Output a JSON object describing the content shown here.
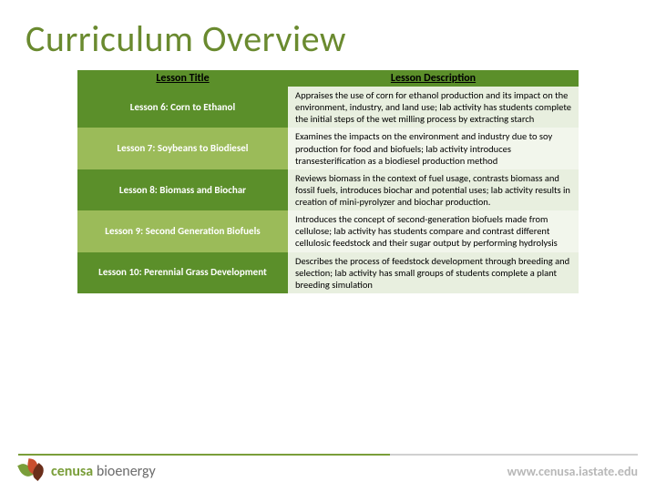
{
  "page": {
    "title": "Curriculum Overview",
    "title_color": "#6a8a2f"
  },
  "table": {
    "header_bg": "#5b8f2a",
    "columns": [
      "Lesson Title",
      "Lesson Description"
    ],
    "row_colors": {
      "dark_title_bg": "#5b8f2a",
      "dark_desc_bg": "#e8efdf",
      "light_title_bg": "#9bbb59",
      "light_desc_bg": "#f2f6ec"
    },
    "rows": [
      {
        "title": "Lesson 6:  Corn to Ethanol",
        "desc": "Appraises the use of corn for ethanol production and its impact on the environment, industry, and land use; lab activity has students complete the initial steps of the wet milling process by extracting starch"
      },
      {
        "title": "Lesson 7:  Soybeans to Biodiesel",
        "desc": "Examines the impacts on the environment and industry due to soy production for food and biofuels; lab activity introduces transesterification as a biodiesel production method"
      },
      {
        "title": "Lesson 8:  Biomass and Biochar",
        "desc": "Reviews biomass in the context of fuel usage, contrasts biomass and fossil fuels, introduces biochar and potential uses; lab activity results in creation of mini-pyrolyzer and biochar production."
      },
      {
        "title": "Lesson 9:  Second Generation Biofuels",
        "desc": "Introduces the concept of second-generation biofuels made from cellulose; lab activity has students compare and contrast different cellulosic feedstock and their sugar output by performing hydrolysis"
      },
      {
        "title": "Lesson 10:  Perennial Grass Development",
        "desc": "Describes the process of feedstock development through breeding and selection; lab activity has small groups of students complete a plant breeding simulation"
      }
    ]
  },
  "footer": {
    "logo_word1": "cenusa",
    "logo_word2": " bioenergy",
    "url": "www.cenusa.iastate.edu"
  }
}
